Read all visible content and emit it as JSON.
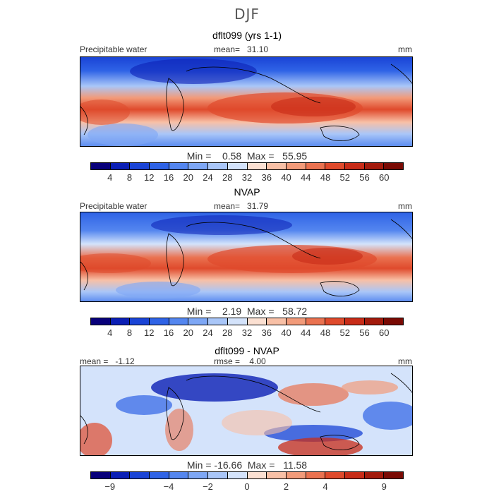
{
  "title": "DJF",
  "panels": [
    {
      "title": "dflt099 (yrs 1-1)",
      "left_label": "Precipitable water",
      "mid_label": "mean=   31.10",
      "unit": "mm",
      "stats": "Min =    0.58  Max =   55.95"
    },
    {
      "title": "NVAP",
      "left_label": "Precipitable water",
      "mid_label": "mean=   31.79",
      "unit": "mm",
      "stats": "Min =    2.19  Max =   58.72"
    },
    {
      "title": "dflt099 - NVAP",
      "left_label": "mean =   -1.12",
      "mid_label": "rmse =    4.00",
      "unit": "mm",
      "stats": "Min = -16.66  Max =   11.58"
    }
  ],
  "colorbar_abs": {
    "colors": [
      "#08007a",
      "#0b1fb5",
      "#1a44d6",
      "#2f63e6",
      "#5486ef",
      "#7ea7f5",
      "#a9c6f8",
      "#d4e3fb",
      "#fbe0d2",
      "#f8c0a6",
      "#f29b7a",
      "#ea7250",
      "#df4a2c",
      "#c82c18",
      "#a31a0c",
      "#7a0a04"
    ],
    "ticks": [
      "4",
      "8",
      "12",
      "16",
      "20",
      "24",
      "28",
      "32",
      "36",
      "40",
      "44",
      "48",
      "52",
      "56",
      "60"
    ]
  },
  "colorbar_diff": {
    "colors": [
      "#08007a",
      "#0b1fb5",
      "#1a44d6",
      "#2f63e6",
      "#5486ef",
      "#7ea7f5",
      "#a9c6f8",
      "#d4e3fb",
      "#fbe0d2",
      "#f8c0a6",
      "#f29b7a",
      "#ea7250",
      "#df4a2c",
      "#c82c18",
      "#a31a0c",
      "#7a0a04"
    ],
    "ticks": [
      "−9",
      "−4",
      "−2",
      "0",
      "2",
      "4",
      "9"
    ],
    "tick_boundaries": [
      1,
      4,
      6,
      8,
      10,
      12,
      15
    ]
  }
}
